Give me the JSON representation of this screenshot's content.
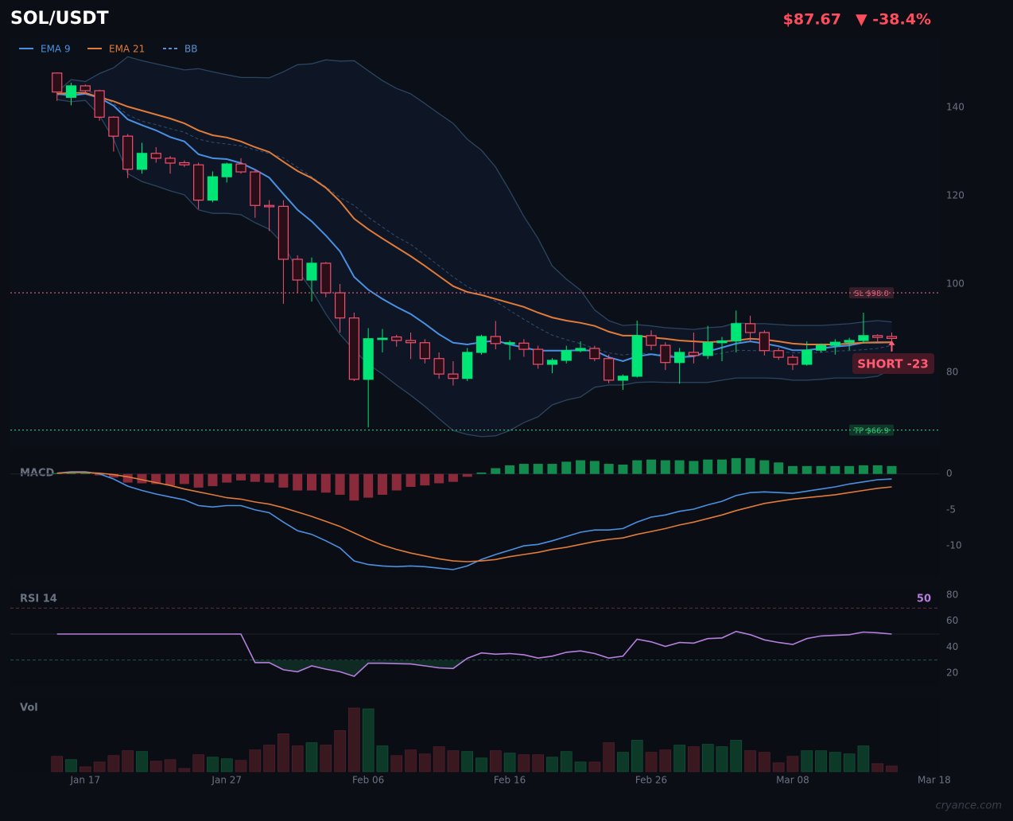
{
  "header": {
    "title": "SOL/USDT",
    "price": "$87.67",
    "change": "▼ -38.4%",
    "watermark": "cryance.com"
  },
  "chart_data": [
    {
      "type": "candlestick",
      "x": [
        0,
        1,
        2,
        3,
        4,
        5,
        6,
        7,
        8,
        9,
        10,
        11,
        12,
        13,
        14,
        15,
        16,
        17,
        18,
        19,
        20,
        21,
        22,
        23,
        24,
        25,
        26,
        27,
        28,
        29,
        30,
        31,
        32,
        33,
        34,
        35,
        36,
        37,
        38,
        39,
        40,
        41,
        42,
        43,
        44,
        45,
        46,
        47,
        48,
        49,
        50,
        51,
        52,
        53,
        54,
        55,
        56,
        57,
        58,
        59
      ],
      "open": [
        147.8,
        142.3,
        144.9,
        143.8,
        137.8,
        133.5,
        126.0,
        129.6,
        128.5,
        127.5,
        127.0,
        119.0,
        124.3,
        127.2,
        125.4,
        117.8,
        117.6,
        105.6,
        100.9,
        104.7,
        98.0,
        92.3,
        78.4,
        87.5,
        88.0,
        87.2,
        86.7,
        83.1,
        79.6,
        78.6,
        84.5,
        88.1,
        86.5,
        86.6,
        85.2,
        81.8,
        82.7,
        84.9,
        85.4,
        83.1,
        78.2,
        79.1,
        88.3,
        86.1,
        82.2,
        84.5,
        83.8,
        86.7,
        87.1,
        91.0,
        89.0,
        84.9,
        83.4,
        81.8,
        85.0,
        86.1,
        86.8,
        87.2,
        88.3,
        88.1
      ],
      "high": [
        147.9,
        145.6,
        145.2,
        144.0,
        138.0,
        134.0,
        132.0,
        131.0,
        129.0,
        128.0,
        127.5,
        125.5,
        127.5,
        128.5,
        126.0,
        119.0,
        119.0,
        106.5,
        106.0,
        105.0,
        100.0,
        93.5,
        90.0,
        89.8,
        88.5,
        89.0,
        87.5,
        84.5,
        82.5,
        85.5,
        88.5,
        91.6,
        87.2,
        87.5,
        86.0,
        83.2,
        86.0,
        87.0,
        86.0,
        84.0,
        79.5,
        91.7,
        89.5,
        86.8,
        85.5,
        89.0,
        90.5,
        88.0,
        94.0,
        92.8,
        89.5,
        85.5,
        84.0,
        87.0,
        86.5,
        87.5,
        87.8,
        93.5,
        88.6,
        89.0
      ],
      "low": [
        141.5,
        140.5,
        143.0,
        137.0,
        130.0,
        124.0,
        125.0,
        127.5,
        125.0,
        126.5,
        117.0,
        118.5,
        123.0,
        125.0,
        115.0,
        112.0,
        95.5,
        98.0,
        96.0,
        97.0,
        89.0,
        78.0,
        67.5,
        84.5,
        85.8,
        83.0,
        82.0,
        78.5,
        77.0,
        78.0,
        84.0,
        85.2,
        82.8,
        83.5,
        80.8,
        79.8,
        82.0,
        84.5,
        82.5,
        77.5,
        76.0,
        78.8,
        85.0,
        80.5,
        77.4,
        82.0,
        83.0,
        82.5,
        84.5,
        87.0,
        83.8,
        82.8,
        80.5,
        81.5,
        84.5,
        84.0,
        85.0,
        86.5,
        87.0,
        86.5
      ],
      "close": [
        143.5,
        144.9,
        143.8,
        137.8,
        133.5,
        126.0,
        129.6,
        128.5,
        127.4,
        127.0,
        119.0,
        124.3,
        127.2,
        125.4,
        117.8,
        117.5,
        105.6,
        100.9,
        104.7,
        98.0,
        92.3,
        78.4,
        87.6,
        87.7,
        87.2,
        86.7,
        83.1,
        79.6,
        78.6,
        84.5,
        88.1,
        86.5,
        86.7,
        85.2,
        81.8,
        82.7,
        84.9,
        85.4,
        83.1,
        78.2,
        79.1,
        88.3,
        86.1,
        82.2,
        84.5,
        83.8,
        86.7,
        87.1,
        91.0,
        89.0,
        84.9,
        83.4,
        81.8,
        85.0,
        86.1,
        86.8,
        87.2,
        88.3,
        87.9,
        87.67
      ],
      "up_color": "#00e676",
      "down_color": "#f0506e",
      "series": [
        {
          "name": "EMA 9",
          "color": "#4a90e2",
          "values": [
            143.1,
            142.7,
            143.1,
            142.2,
            140.4,
            137.3,
            136.0,
            134.8,
            133.3,
            132.3,
            129.4,
            128.5,
            128.3,
            127.4,
            125.9,
            124.1,
            120.4,
            116.8,
            114.2,
            111.0,
            107.4,
            101.6,
            98.7,
            96.6,
            94.8,
            93.2,
            91.0,
            88.6,
            86.7,
            86.3,
            86.8,
            87.2,
            86.3,
            85.6,
            84.9,
            84.9,
            84.9,
            85.0,
            84.9,
            83.4,
            82.5,
            83.6,
            84.1,
            83.6,
            83.4,
            83.6,
            84.7,
            85.6,
            86.5,
            87.0,
            86.5,
            85.9,
            85.0,
            85.0,
            85.4,
            85.8,
            86.1,
            86.7,
            86.7,
            86.8
          ]
        },
        {
          "name": "EMA 21",
          "color": "#e07b39",
          "values": [
            143.1,
            143.3,
            143.3,
            142.3,
            141.4,
            140.2,
            139.3,
            138.4,
            137.5,
            136.4,
            134.8,
            133.7,
            133.2,
            132.3,
            131.0,
            129.9,
            127.7,
            125.6,
            124.0,
            121.8,
            118.7,
            114.8,
            112.4,
            110.3,
            108.3,
            106.3,
            104.1,
            101.8,
            99.5,
            98.2,
            97.5,
            96.6,
            95.7,
            94.8,
            93.5,
            92.4,
            91.7,
            91.2,
            90.5,
            89.2,
            88.3,
            88.3,
            87.9,
            87.6,
            87.2,
            87.0,
            86.8,
            87.0,
            87.2,
            87.6,
            87.4,
            87.0,
            86.5,
            86.3,
            86.3,
            86.3,
            86.5,
            86.7,
            86.8,
            86.8
          ]
        },
        {
          "name": "BB",
          "color": "#5b8fd0",
          "dash": true,
          "upper": [
            143.5,
            146.3,
            145.9,
            147.7,
            149.0,
            151.5,
            150.6,
            149.9,
            149.2,
            148.5,
            148.8,
            148.1,
            147.4,
            146.8,
            146.8,
            146.7,
            148.1,
            149.7,
            149.9,
            150.8,
            150.5,
            150.6,
            148.3,
            146.1,
            144.3,
            143.1,
            140.9,
            138.6,
            136.4,
            132.8,
            130.3,
            126.5,
            121.1,
            115.3,
            110.3,
            104.1,
            101.1,
            98.6,
            94.1,
            91.7,
            90.6,
            90.8,
            90.5,
            90.1,
            89.9,
            89.7,
            90.1,
            90.3,
            91.2,
            91.0,
            91.0,
            90.8,
            90.6,
            90.6,
            90.6,
            90.8,
            91.0,
            91.4,
            91.7,
            91.4
          ],
          "middle": [
            142.7,
            143.8,
            143.8,
            143.0,
            140.9,
            138.3,
            136.9,
            136.1,
            135.2,
            134.4,
            132.8,
            132.1,
            131.7,
            131.3,
            130.4,
            129.6,
            128.6,
            126.4,
            124.3,
            122.0,
            119.6,
            117.8,
            115.1,
            112.9,
            110.7,
            109.0,
            106.6,
            104.1,
            101.6,
            99.4,
            97.9,
            96.1,
            94.0,
            92.0,
            90.1,
            88.4,
            87.4,
            86.5,
            85.4,
            84.4,
            83.9,
            84.3,
            84.2,
            83.9,
            83.8,
            83.7,
            83.9,
            84.3,
            85.0,
            84.9,
            84.9,
            84.7,
            84.4,
            84.4,
            84.5,
            84.8,
            84.9,
            85.1,
            85.4,
            86.1
          ],
          "lower": [
            141.8,
            141.3,
            141.6,
            138.2,
            132.8,
            125.0,
            123.2,
            122.2,
            121.1,
            120.2,
            116.8,
            116.0,
            116.0,
            115.7,
            113.9,
            112.4,
            109.0,
            103.1,
            98.6,
            93.2,
            88.6,
            85.0,
            81.8,
            79.6,
            77.1,
            74.8,
            72.3,
            69.5,
            66.8,
            65.9,
            65.4,
            65.6,
            66.8,
            68.6,
            69.9,
            72.6,
            73.7,
            74.4,
            76.6,
            77.1,
            77.1,
            77.7,
            77.8,
            77.7,
            77.7,
            77.7,
            77.7,
            78.2,
            78.7,
            78.7,
            78.7,
            78.6,
            78.2,
            78.2,
            78.4,
            78.7,
            78.7,
            78.7,
            79.1,
            80.7
          ]
        }
      ],
      "levels": [
        {
          "value": 98.0,
          "label": "SL $98.0",
          "color": "#e0607a"
        },
        {
          "value": 66.9,
          "label": "TP $66.9",
          "color": "#2ecc71"
        }
      ],
      "signal": {
        "label": "SHORT  -23",
        "color": "#ff5c75"
      },
      "ylim": [
        63.4,
        155.7
      ],
      "yticks": [
        80,
        100,
        120,
        140
      ]
    },
    {
      "type": "macd",
      "title": "MACD",
      "histogram": [
        0.1,
        0.1,
        0.1,
        -0.2,
        -0.5,
        -1.2,
        -1.3,
        -1.4,
        -1.6,
        -1.4,
        -1.9,
        -1.7,
        -1.2,
        -0.9,
        -1.1,
        -1.2,
        -1.9,
        -2.3,
        -2.3,
        -2.6,
        -2.9,
        -3.7,
        -3.3,
        -2.9,
        -2.3,
        -1.8,
        -1.6,
        -1.3,
        -1.1,
        -0.4,
        0.2,
        0.8,
        1.2,
        1.4,
        1.4,
        1.4,
        1.7,
        1.9,
        1.8,
        1.4,
        1.3,
        1.9,
        2.0,
        1.9,
        1.9,
        1.8,
        2.0,
        2.0,
        2.2,
        2.2,
        1.9,
        1.6,
        1.1,
        1.1,
        1.1,
        1.1,
        1.1,
        1.2,
        1.2,
        1.1
      ],
      "up_color": "#138a4e",
      "down_color": "#8b2a3a",
      "series": [
        {
          "color": "#4a90e2",
          "values": [
            0.1,
            0.3,
            0.3,
            0.0,
            -0.7,
            -1.7,
            -2.3,
            -2.8,
            -3.2,
            -3.6,
            -4.4,
            -4.6,
            -4.4,
            -4.4,
            -5.0,
            -5.4,
            -6.7,
            -7.9,
            -8.4,
            -9.3,
            -10.3,
            -12.1,
            -12.6,
            -12.8,
            -12.9,
            -12.8,
            -12.9,
            -13.1,
            -13.3,
            -12.8,
            -11.9,
            -11.2,
            -10.6,
            -10.0,
            -9.8,
            -9.3,
            -8.7,
            -8.1,
            -7.8,
            -7.8,
            -7.6,
            -6.7,
            -6.0,
            -5.7,
            -5.2,
            -4.9,
            -4.3,
            -3.8,
            -3.0,
            -2.6,
            -2.5,
            -2.6,
            -2.7,
            -2.4,
            -2.1,
            -1.8,
            -1.4,
            -1.1,
            -0.8,
            -0.7
          ]
        },
        {
          "color": "#e07b39",
          "values": [
            0.1,
            0.2,
            0.2,
            0.1,
            -0.1,
            -0.4,
            -0.8,
            -1.2,
            -1.6,
            -2.1,
            -2.5,
            -2.9,
            -3.3,
            -3.5,
            -3.9,
            -4.2,
            -4.7,
            -5.3,
            -5.9,
            -6.6,
            -7.3,
            -8.2,
            -9.1,
            -9.9,
            -10.5,
            -11.0,
            -11.4,
            -11.8,
            -12.1,
            -12.2,
            -12.1,
            -11.9,
            -11.5,
            -11.2,
            -10.9,
            -10.5,
            -10.2,
            -9.8,
            -9.4,
            -9.1,
            -8.9,
            -8.4,
            -8.0,
            -7.6,
            -7.1,
            -6.7,
            -6.2,
            -5.7,
            -5.1,
            -4.6,
            -4.1,
            -3.8,
            -3.5,
            -3.3,
            -3.1,
            -2.9,
            -2.6,
            -2.3,
            -2.0,
            -1.8
          ]
        }
      ],
      "ylim": [
        -14.3,
        3.4
      ],
      "yticks": [
        0,
        -5,
        -10
      ]
    },
    {
      "type": "line",
      "title": "RSI 14",
      "color": "#b57edc",
      "values": [
        50,
        50,
        50,
        50,
        50,
        50,
        50,
        50,
        50,
        50,
        50,
        50,
        50,
        50,
        28.0,
        28.0,
        22.5,
        21.0,
        25.5,
        23.0,
        21.0,
        17.5,
        27.5,
        27.5,
        27.2,
        27.0,
        25.5,
        24.0,
        23.5,
        31.3,
        35.5,
        34.5,
        35.0,
        34.0,
        31.5,
        33.0,
        36.0,
        37.0,
        35.0,
        31.5,
        33.0,
        46.0,
        44.0,
        40.5,
        43.5,
        43.0,
        46.5,
        47.0,
        52.0,
        49.5,
        45.5,
        43.5,
        42.0,
        46.5,
        48.5,
        49.0,
        49.5,
        51.5,
        51.0,
        50
      ],
      "levels": [
        {
          "value": 70,
          "color": "#6a2a3a",
          "dash": true
        },
        {
          "value": 50,
          "color": "#1c222c"
        },
        {
          "value": 30,
          "color": "#1f5a40",
          "dash": true,
          "shade": "#0f2a22"
        }
      ],
      "ylim": [
        10.2,
        84.9
      ],
      "yticks": [
        20,
        40,
        60,
        80
      ]
    },
    {
      "type": "bar",
      "title": "Vol",
      "values": [
        19,
        15,
        6,
        12,
        20,
        26,
        25,
        13,
        15,
        4,
        21,
        18,
        16,
        14,
        27,
        33,
        47,
        32,
        36,
        33,
        51,
        79,
        78,
        32,
        20,
        27,
        22,
        31,
        26,
        25,
        17,
        26,
        23,
        21,
        21,
        18,
        25,
        12,
        12,
        36,
        24,
        39,
        24,
        27,
        33,
        31,
        34,
        31,
        39,
        26,
        24,
        11,
        19,
        26,
        26,
        24,
        22,
        32,
        10,
        7
      ],
      "up_color": "#0d3a28",
      "down_color": "#3a1820",
      "xlim": [
        -3.3,
        62.4
      ],
      "xticks": [
        {
          "value": 2,
          "label": "Jan 17"
        },
        {
          "value": 12,
          "label": "Jan 27"
        },
        {
          "value": 22,
          "label": "Feb 06"
        },
        {
          "value": 32,
          "label": "Feb 16"
        },
        {
          "value": 42,
          "label": "Feb 26"
        },
        {
          "value": 52,
          "label": "Mar 08"
        },
        {
          "value": 62,
          "label": "Mar 18"
        }
      ]
    }
  ]
}
